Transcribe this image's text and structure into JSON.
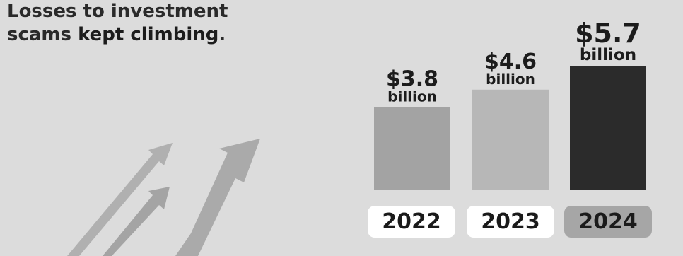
{
  "headline": {
    "line1": "Losses to investment",
    "line2_prefix": "scams ",
    "line2_bold": "kept climbing",
    "line2_suffix": "."
  },
  "chart_data": {
    "type": "bar",
    "categories": [
      "2022",
      "2023",
      "2024"
    ],
    "values": [
      3.8,
      4.6,
      5.7
    ],
    "value_labels": [
      "$3.8",
      "$4.6",
      "$5.7"
    ],
    "unit_labels": [
      "billion",
      "billion",
      "billion"
    ],
    "title": "",
    "xlabel": "",
    "ylabel": "",
    "grid": false,
    "colors": {
      "bars": [
        "#a3a3a3",
        "#b7b7b7",
        "#2b2b2b"
      ],
      "pills": [
        "#ffffff",
        "#ffffff",
        "#a6a6a6"
      ]
    }
  },
  "decoration": {
    "arrow_color": "#a9a9a9",
    "arrow_icon": "rising-arrows-icon"
  }
}
